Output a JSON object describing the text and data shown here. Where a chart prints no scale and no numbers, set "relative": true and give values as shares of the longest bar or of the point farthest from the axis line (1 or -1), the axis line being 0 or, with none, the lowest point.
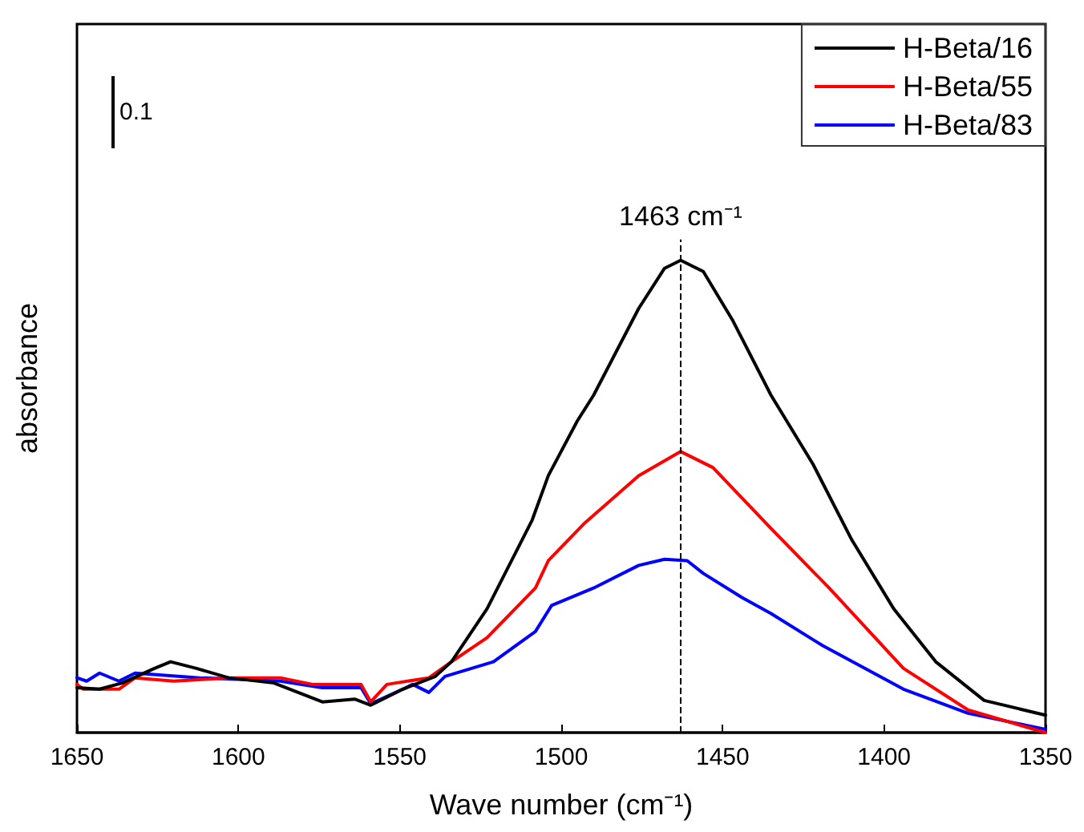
{
  "chart_data": {
    "type": "line",
    "relative": true,
    "xlabel": "Wave number (cm⁻¹)",
    "ylabel": "absorbance",
    "xlim": [
      1650,
      1350
    ],
    "xticks": [
      1650,
      1600,
      1550,
      1500,
      1450,
      1400,
      1350
    ],
    "legend": "top right",
    "grid": false,
    "marker": "none",
    "line_style": "solid",
    "annotations": [
      "0.1"
    ],
    "ref_lines": [
      {
        "axis": "x",
        "value": 1463,
        "label": "1463 cm⁻¹",
        "color": "#000000",
        "line_style": "dashed"
      }
    ],
    "series": [
      {
        "name": "H-Beta/16",
        "color": "#000000",
        "x": [
          1650,
          1643,
          1636,
          1626,
          1621,
          1613,
          1603,
          1589,
          1574,
          1564,
          1559,
          1549,
          1539,
          1534,
          1523,
          1509,
          1504,
          1495,
          1490,
          1476,
          1468,
          1463,
          1456,
          1447,
          1435,
          1422,
          1410,
          1397,
          1384,
          1369,
          1350
        ],
        "values": [
          0.095,
          0.092,
          0.105,
          0.136,
          0.15,
          0.136,
          0.116,
          0.105,
          0.065,
          0.071,
          0.058,
          0.092,
          0.119,
          0.15,
          0.262,
          0.45,
          0.544,
          0.66,
          0.714,
          0.898,
          0.983,
          1.0,
          0.976,
          0.874,
          0.714,
          0.568,
          0.408,
          0.262,
          0.15,
          0.068,
          0.037
        ]
      },
      {
        "name": "H-Beta/55",
        "color": "#ff0000",
        "x": [
          1650,
          1648,
          1637,
          1632,
          1620,
          1603,
          1587,
          1577,
          1562,
          1559,
          1554,
          1541,
          1534,
          1523,
          1508,
          1504,
          1493,
          1476,
          1463,
          1453,
          1435,
          1417,
          1394,
          1374,
          1350
        ],
        "values": [
          0.102,
          0.092,
          0.092,
          0.116,
          0.109,
          0.116,
          0.116,
          0.102,
          0.102,
          0.065,
          0.102,
          0.116,
          0.15,
          0.201,
          0.306,
          0.364,
          0.442,
          0.544,
          0.595,
          0.561,
          0.432,
          0.306,
          0.136,
          0.048,
          0
        ]
      },
      {
        "name": "H-Beta/83",
        "color": "#0000ff",
        "x": [
          1650,
          1647,
          1643,
          1637,
          1632,
          1612,
          1587,
          1574,
          1562,
          1559,
          1546,
          1541,
          1536,
          1521,
          1508,
          1503,
          1490,
          1476,
          1468,
          1461,
          1456,
          1444,
          1435,
          1419,
          1394,
          1374,
          1350
        ],
        "values": [
          0.116,
          0.109,
          0.126,
          0.109,
          0.126,
          0.116,
          0.109,
          0.095,
          0.095,
          0.061,
          0.102,
          0.085,
          0.119,
          0.15,
          0.214,
          0.269,
          0.306,
          0.354,
          0.367,
          0.364,
          0.337,
          0.286,
          0.252,
          0.184,
          0.092,
          0.041,
          0.007
        ]
      }
    ]
  }
}
